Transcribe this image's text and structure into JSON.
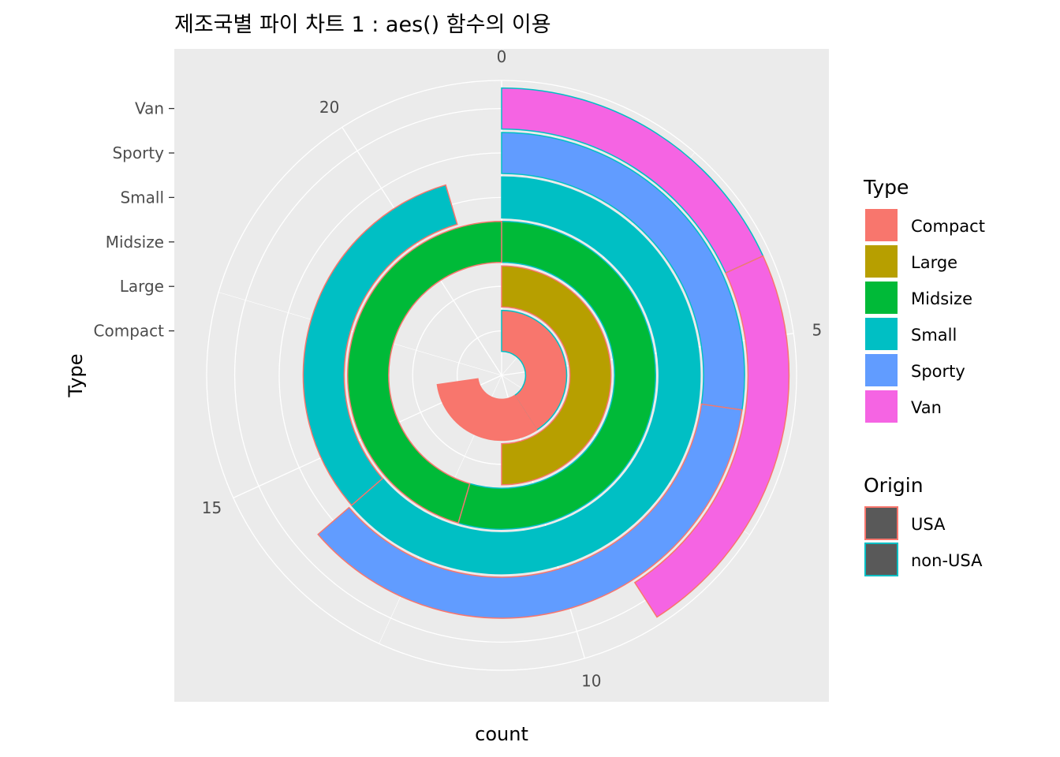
{
  "chart_data": {
    "type": "pie",
    "coord": "polar",
    "title": "제조국별 파이 차트 1 : aes() 함수의 이용",
    "xlabel": "count",
    "ylabel": "Type",
    "categories": [
      "Compact",
      "Large",
      "Midsize",
      "Small",
      "Sporty",
      "Van"
    ],
    "series": [
      {
        "name": "USA",
        "values": [
          7,
          11,
          10,
          7,
          8,
          5
        ]
      },
      {
        "name": "non-USA",
        "values": [
          9,
          0,
          12,
          14,
          6,
          4
        ]
      }
    ],
    "count_ticks": [
      0,
      5,
      10,
      15,
      20
    ],
    "count_range": [
      0,
      22
    ],
    "fill_legend": {
      "title": "Type",
      "items": [
        {
          "label": "Compact",
          "color": "#F8766D"
        },
        {
          "label": "Large",
          "color": "#B79F00"
        },
        {
          "label": "Midsize",
          "color": "#00BA38"
        },
        {
          "label": "Small",
          "color": "#00BFC4"
        },
        {
          "label": "Sporty",
          "color": "#619CFF"
        },
        {
          "label": "Van",
          "color": "#F564E3"
        }
      ]
    },
    "colour_legend": {
      "title": "Origin",
      "items": [
        {
          "label": "USA",
          "color": "#F8766D"
        },
        {
          "label": "non-USA",
          "color": "#00BFC4"
        }
      ]
    },
    "grid": true,
    "legend_position": "right"
  }
}
